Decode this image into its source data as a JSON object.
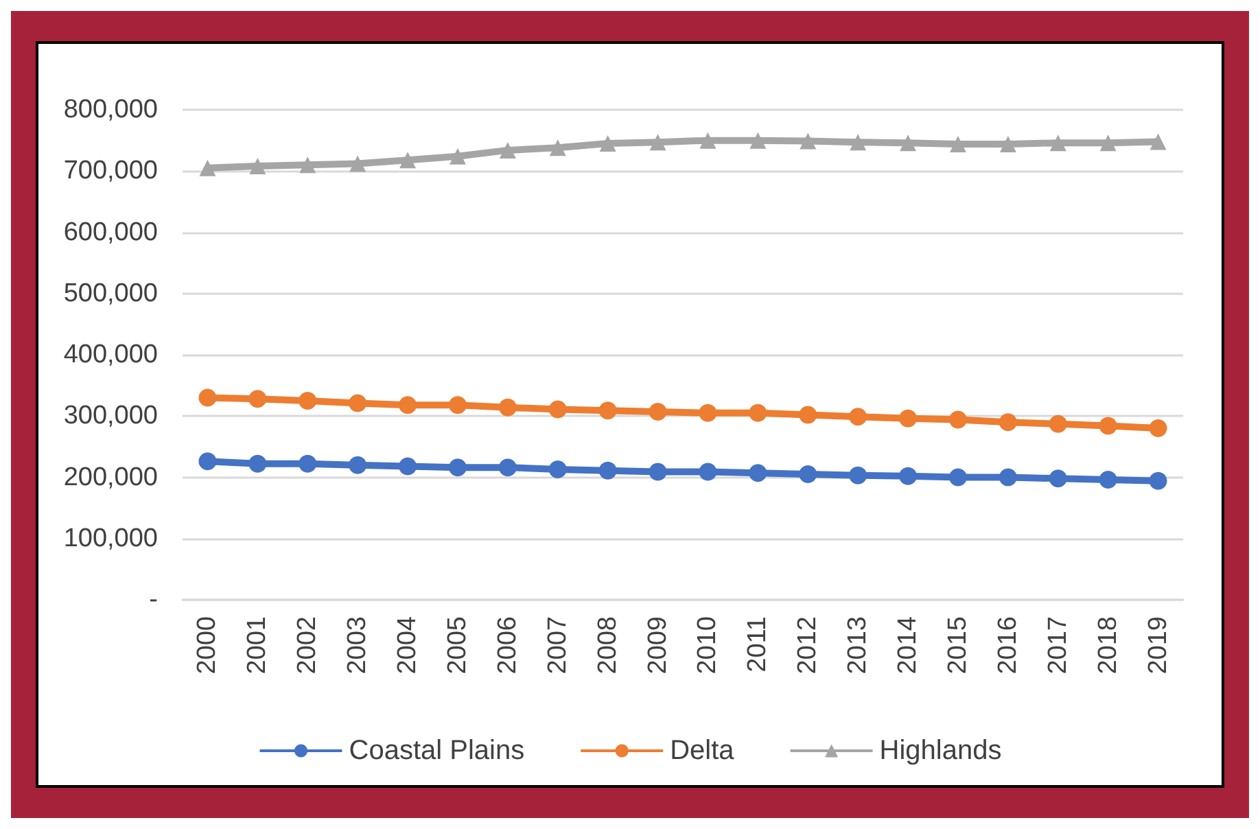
{
  "chart_data": {
    "type": "line",
    "categories": [
      "2000",
      "2001",
      "2002",
      "2003",
      "2004",
      "2005",
      "2006",
      "2007",
      "2008",
      "2009",
      "2010",
      "2011",
      "2012",
      "2013",
      "2014",
      "2015",
      "2016",
      "2017",
      "2018",
      "2019"
    ],
    "series": [
      {
        "name": "Coastal Plains",
        "color": "#4472c4",
        "marker": "circle",
        "values": [
          226000,
          222000,
          222000,
          220000,
          218000,
          216000,
          216000,
          213000,
          211000,
          209000,
          209000,
          207000,
          205000,
          203000,
          202000,
          200000,
          200000,
          198000,
          196000,
          194000
        ]
      },
      {
        "name": "Delta",
        "color": "#ed7d31",
        "marker": "circle",
        "values": [
          330000,
          328000,
          325000,
          321000,
          318000,
          318000,
          314000,
          311000,
          309000,
          307000,
          305000,
          305000,
          302000,
          299000,
          296000,
          294000,
          290000,
          287000,
          284000,
          280000
        ]
      },
      {
        "name": "Highlands",
        "color": "#a5a5a5",
        "marker": "triangle",
        "values": [
          705000,
          708000,
          710000,
          712000,
          718000,
          724000,
          734000,
          738000,
          745000,
          747000,
          750000,
          750000,
          749000,
          747000,
          746000,
          744000,
          744000,
          746000,
          746000,
          748000
        ]
      }
    ],
    "ylim": [
      0,
      800000
    ],
    "yticks": [
      {
        "value": 0,
        "label": "-"
      },
      {
        "value": 100000,
        "label": "100,000"
      },
      {
        "value": 200000,
        "label": "200,000"
      },
      {
        "value": 300000,
        "label": "300,000"
      },
      {
        "value": 400000,
        "label": "400,000"
      },
      {
        "value": 500000,
        "label": "500,000"
      },
      {
        "value": 600000,
        "label": "600,000"
      },
      {
        "value": 700000,
        "label": "700,000"
      },
      {
        "value": 800000,
        "label": "800,000"
      }
    ],
    "grid": "y",
    "legend": "bottom"
  }
}
